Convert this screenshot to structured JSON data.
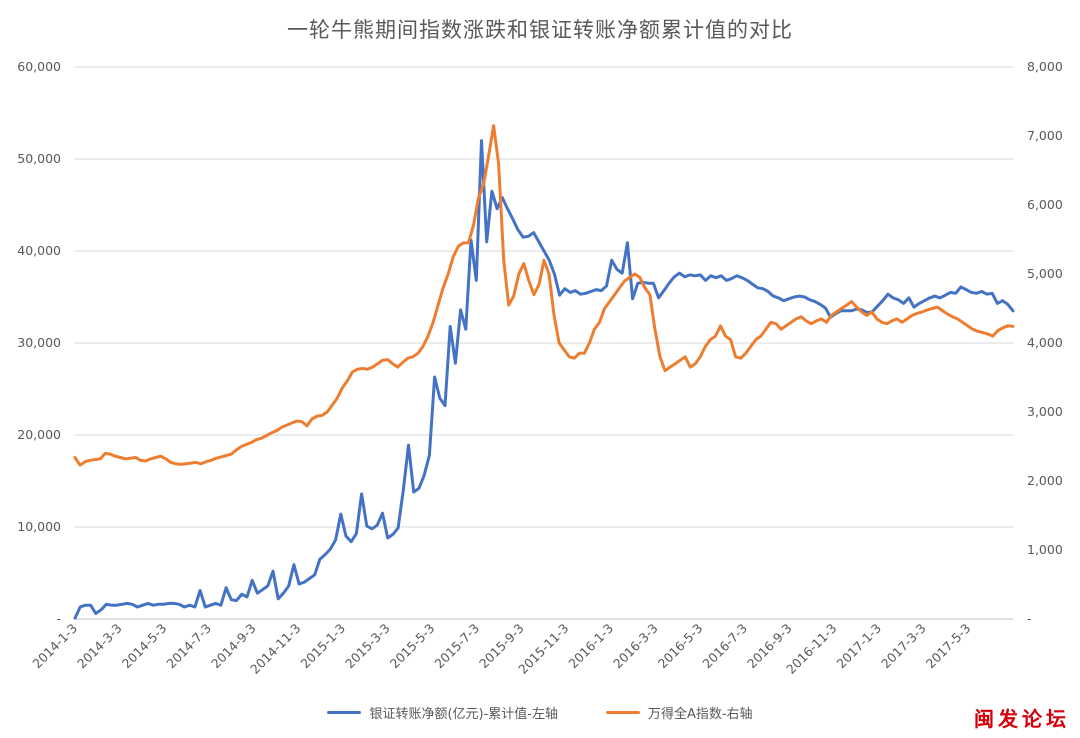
{
  "chart_data": {
    "type": "line",
    "title": "一轮牛熊期间指数涨跌和银证转账净额累计值的对比",
    "x_tick_labels": [
      "2014-1-3",
      "2014-3-3",
      "2014-5-3",
      "2014-7-3",
      "2014-9-3",
      "2014-11-3",
      "2015-1-3",
      "2015-3-3",
      "2015-5-3",
      "2015-7-3",
      "2015-9-3",
      "2015-11-3",
      "2016-1-3",
      "2016-3-3",
      "2016-5-3",
      "2016-7-3",
      "2016-9-3",
      "2016-11-3",
      "2017-1-3",
      "2017-3-3",
      "2017-5-3"
    ],
    "y_left": {
      "ylim": [
        0,
        60000
      ],
      "tick_labels": [
        "-",
        "10,000",
        "20,000",
        "30,000",
        "40,000",
        "50,000",
        "60,000"
      ]
    },
    "y_right": {
      "ylim": [
        0,
        8000
      ],
      "tick_labels": [
        "-",
        "1,000",
        "2,000",
        "3,000",
        "4,000",
        "5,000",
        "6,000",
        "7,000",
        "8,000"
      ]
    },
    "grid": true,
    "legend_position": "bottom",
    "series": [
      {
        "name": "银证转账净额(亿元)-累计值-左轴",
        "axis": "left",
        "color": "#4472c4",
        "values": [
          100,
          1300,
          1500,
          1500,
          600,
          1000,
          1600,
          1500,
          1500,
          1600,
          1700,
          1600,
          1300,
          1500,
          1700,
          1500,
          1600,
          1600,
          1700,
          1700,
          1600,
          1300,
          1500,
          1300,
          3100,
          1300,
          1500,
          1700,
          1500,
          3400,
          2100,
          2000,
          2700,
          2400,
          4200,
          2800,
          3200,
          3600,
          5200,
          2200,
          2800,
          3600,
          5900,
          3800,
          4000,
          4400,
          4800,
          6500,
          7000,
          7600,
          8600,
          11400,
          9000,
          8400,
          9300,
          13600,
          10100,
          9800,
          10200,
          11500,
          8800,
          9200,
          9900,
          14000,
          18900,
          13800,
          14200,
          15600,
          17800,
          26300,
          24000,
          23200,
          31800,
          27800,
          33600,
          31500,
          41200,
          36800,
          52000,
          41000,
          46500,
          44600,
          45800,
          44600,
          43500,
          42300,
          41500,
          41600,
          42000,
          41000,
          40000,
          39000,
          37500,
          35200,
          35900,
          35500,
          35700,
          35300,
          35400,
          35600,
          35800,
          35700,
          36200,
          39000,
          38000,
          37600,
          40900,
          34800,
          36500,
          36600,
          36500,
          36500,
          34900,
          35700,
          36500,
          37200,
          37600,
          37200,
          37400,
          37300,
          37400,
          36800,
          37300,
          37100,
          37300,
          36800,
          37000,
          37300,
          37100,
          36800,
          36400,
          36000,
          35900,
          35600,
          35100,
          34900,
          34600,
          34800,
          35000,
          35100,
          35000,
          34700,
          34500,
          34200,
          33800,
          32800,
          33200,
          33500,
          33500,
          33500,
          33700,
          33600,
          33300,
          33400,
          34000,
          34600,
          35300,
          34900,
          34700,
          34300,
          34900,
          33900,
          34300,
          34600,
          34900,
          35100,
          34900,
          35200,
          35500,
          35400,
          36100,
          35800,
          35500,
          35400,
          35600,
          35300,
          35400,
          34300,
          34600,
          34200,
          33500
        ]
      },
      {
        "name": "万得全A指数-右轴",
        "axis": "right",
        "color": "#ed7d31",
        "values": [
          2340,
          2230,
          2280,
          2300,
          2310,
          2320,
          2400,
          2390,
          2360,
          2340,
          2320,
          2330,
          2340,
          2300,
          2290,
          2320,
          2340,
          2360,
          2320,
          2270,
          2250,
          2240,
          2250,
          2260,
          2270,
          2250,
          2280,
          2300,
          2330,
          2350,
          2370,
          2390,
          2450,
          2500,
          2530,
          2560,
          2600,
          2620,
          2660,
          2700,
          2730,
          2780,
          2810,
          2840,
          2870,
          2860,
          2800,
          2900,
          2940,
          2950,
          3000,
          3100,
          3200,
          3350,
          3450,
          3580,
          3620,
          3630,
          3620,
          3650,
          3700,
          3750,
          3760,
          3700,
          3650,
          3720,
          3780,
          3800,
          3850,
          3950,
          4100,
          4300,
          4550,
          4800,
          5000,
          5250,
          5400,
          5450,
          5450,
          5700,
          6100,
          6300,
          6700,
          7150,
          6600,
          5200,
          4550,
          4680,
          5000,
          5150,
          4900,
          4700,
          4850,
          5200,
          5000,
          4400,
          4000,
          3900,
          3800,
          3780,
          3850,
          3850,
          4000,
          4200,
          4300,
          4500,
          4600,
          4700,
          4800,
          4900,
          4950,
          5000,
          4950,
          4800,
          4700,
          4200,
          3800,
          3600,
          3650,
          3700,
          3750,
          3800,
          3650,
          3700,
          3800,
          3950,
          4050,
          4100,
          4250,
          4100,
          4050,
          3800,
          3780,
          3850,
          3950,
          4050,
          4100,
          4200,
          4300,
          4280,
          4200,
          4250,
          4300,
          4350,
          4380,
          4320,
          4280,
          4320,
          4350,
          4300,
          4400,
          4450,
          4500,
          4550,
          4600,
          4520,
          4450,
          4400,
          4450,
          4350,
          4300,
          4280,
          4320,
          4350,
          4300,
          4350,
          4400,
          4430,
          4450,
          4480,
          4500,
          4520,
          4470,
          4420,
          4380,
          4350,
          4300,
          4250,
          4200,
          4170,
          4150,
          4130,
          4100,
          4180,
          4220,
          4250,
          4240
        ]
      }
    ]
  },
  "watermark_text": "闽发论坛"
}
